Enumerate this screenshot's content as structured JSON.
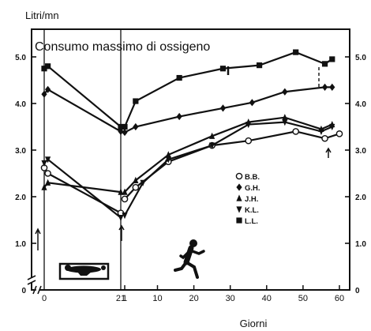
{
  "chart_data": {
    "type": "line",
    "title": "Consumo massimo di ossigeno",
    "ylabel": "Litri/mn",
    "xlabel": "Giorni",
    "ylim": [
      0,
      5.5
    ],
    "yticks_left": [
      "0",
      "1.0",
      "2.0",
      "3.0",
      "4.0",
      "5.0"
    ],
    "yticks_right": [
      "0",
      "1.0",
      "2.0",
      "3.0",
      "4.0",
      "5.0"
    ],
    "yticks_values": [
      0,
      1,
      2,
      3,
      4,
      5
    ],
    "x_segments": [
      {
        "label": "bed rest",
        "range": [
          0,
          21
        ],
        "ticks": [
          {
            "value": 0,
            "label": "0"
          },
          {
            "value": 21,
            "label": "21"
          }
        ]
      },
      {
        "label": "training",
        "range": [
          0,
          60
        ],
        "ticks": [
          {
            "value": 1,
            "label": "1"
          },
          {
            "value": 10,
            "label": "10"
          },
          {
            "value": 20,
            "label": "20"
          },
          {
            "value": 30,
            "label": "30"
          },
          {
            "value": 40,
            "label": "40"
          },
          {
            "value": 50,
            "label": "50"
          },
          {
            "value": 60,
            "label": "60"
          }
        ]
      }
    ],
    "grid": false,
    "legend_position": "center-right",
    "series": [
      {
        "name": "B.B.",
        "marker": "circle-open",
        "bed": [
          {
            "x": 0,
            "y": 2.62
          },
          {
            "x": 1,
            "y": 2.5
          },
          {
            "x": 21,
            "y": 1.65
          }
        ],
        "train": [
          {
            "x": 1,
            "y": 1.95
          },
          {
            "x": 4,
            "y": 2.2
          },
          {
            "x": 13,
            "y": 2.75
          },
          {
            "x": 25,
            "y": 3.1
          },
          {
            "x": 35,
            "y": 3.2
          },
          {
            "x": 48,
            "y": 3.4
          },
          {
            "x": 56,
            "y": 3.25
          },
          {
            "x": 60,
            "y": 3.35
          }
        ]
      },
      {
        "name": "G.H.",
        "marker": "diamond",
        "bed": [
          {
            "x": 0,
            "y": 4.2
          },
          {
            "x": 1,
            "y": 4.3
          },
          {
            "x": 21,
            "y": 3.4
          }
        ],
        "train": [
          {
            "x": 1,
            "y": 3.38
          },
          {
            "x": 4,
            "y": 3.5
          },
          {
            "x": 16,
            "y": 3.72
          },
          {
            "x": 28,
            "y": 3.9
          },
          {
            "x": 36,
            "y": 4.02
          },
          {
            "x": 45,
            "y": 4.25
          },
          {
            "x": 56,
            "y": 4.35
          },
          {
            "x": 58,
            "y": 4.35
          }
        ]
      },
      {
        "name": "J.H.",
        "marker": "triangle",
        "bed": [
          {
            "x": 0,
            "y": 2.2
          },
          {
            "x": 1,
            "y": 2.3
          },
          {
            "x": 21,
            "y": 2.1
          }
        ],
        "train": [
          {
            "x": 1,
            "y": 2.1
          },
          {
            "x": 4,
            "y": 2.35
          },
          {
            "x": 13,
            "y": 2.9
          },
          {
            "x": 25,
            "y": 3.3
          },
          {
            "x": 35,
            "y": 3.6
          },
          {
            "x": 45,
            "y": 3.7
          },
          {
            "x": 55,
            "y": 3.45
          },
          {
            "x": 58,
            "y": 3.55
          }
        ]
      },
      {
        "name": "K.L.",
        "marker": "triangle-down",
        "bed": [
          {
            "x": 0,
            "y": 2.72
          },
          {
            "x": 1,
            "y": 2.8
          },
          {
            "x": 21,
            "y": 1.55
          }
        ],
        "train": [
          {
            "x": 1,
            "y": 1.6
          },
          {
            "x": 6,
            "y": 2.3
          },
          {
            "x": 13,
            "y": 2.8
          },
          {
            "x": 25,
            "y": 3.1
          },
          {
            "x": 35,
            "y": 3.55
          },
          {
            "x": 45,
            "y": 3.6
          },
          {
            "x": 55,
            "y": 3.4
          },
          {
            "x": 58,
            "y": 3.5
          }
        ]
      },
      {
        "name": "L.L.",
        "marker": "square",
        "bed": [
          {
            "x": 0,
            "y": 4.75
          },
          {
            "x": 1,
            "y": 4.8
          },
          {
            "x": 21,
            "y": 3.5
          }
        ],
        "train": [
          {
            "x": 1,
            "y": 3.5
          },
          {
            "x": 4,
            "y": 4.05
          },
          {
            "x": 16,
            "y": 4.55
          },
          {
            "x": 28,
            "y": 4.75
          },
          {
            "x": 38,
            "y": 4.82
          },
          {
            "x": 48,
            "y": 5.1
          },
          {
            "x": 56,
            "y": 4.85
          },
          {
            "x": 58,
            "y": 4.95
          }
        ]
      }
    ]
  }
}
